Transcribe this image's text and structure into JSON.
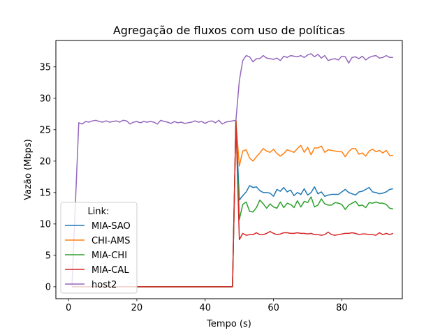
{
  "chart_data": {
    "type": "line",
    "title": "Agregação de fluxos com uso de políticas",
    "xlabel": "Tempo (s)",
    "ylabel": "Vazão (Mbps)",
    "xlim": [
      -3.7,
      97.7
    ],
    "ylim": [
      -1.9,
      39.2
    ],
    "xticks": [
      0,
      20,
      40,
      60,
      80
    ],
    "yticks": [
      0,
      5,
      10,
      15,
      20,
      25,
      30,
      35
    ],
    "grid": false,
    "legend": {
      "title": "Link:",
      "placement": "lower-left"
    },
    "series": [
      {
        "name": "MIA-SAO",
        "color": "#1f77b4",
        "x": [
          1,
          2,
          3,
          4,
          5,
          6,
          7,
          8,
          9,
          10,
          11,
          12,
          13,
          14,
          15,
          16,
          17,
          18,
          19,
          20,
          21,
          22,
          23,
          24,
          25,
          26,
          27,
          28,
          29,
          30,
          31,
          32,
          33,
          34,
          35,
          36,
          37,
          38,
          39,
          40,
          41,
          42,
          43,
          44,
          45,
          46,
          47,
          48,
          49,
          50,
          51,
          52,
          53,
          54,
          55,
          56,
          57,
          58,
          59,
          60,
          61,
          62,
          63,
          64,
          65,
          66,
          67,
          68,
          69,
          70,
          71,
          72,
          73,
          74,
          75,
          76,
          77,
          78,
          79,
          80,
          81,
          82,
          83,
          84,
          85,
          86,
          87,
          88,
          89,
          90,
          91,
          92,
          93,
          94,
          95
        ],
        "y": [
          0,
          0,
          0,
          0,
          0,
          0,
          0,
          0,
          0,
          0,
          0,
          0,
          0,
          0,
          0,
          0,
          0,
          0,
          0,
          0,
          0,
          0,
          0,
          0,
          0,
          0,
          0,
          0,
          0,
          0,
          0,
          0,
          0,
          0,
          0,
          0,
          0,
          0,
          0,
          0,
          0,
          0,
          0,
          0,
          0,
          0,
          0,
          0,
          26.5,
          13.8,
          14.5,
          15.1,
          16.1,
          15.8,
          15.9,
          15.3,
          15.0,
          15.0,
          14.9,
          14.4,
          15.5,
          15.2,
          15.8,
          15.1,
          15.4,
          14.5,
          15.0,
          14.7,
          15.6,
          14.6,
          15.0,
          15.9,
          14.8,
          15.1,
          14.4,
          14.6,
          14.7,
          14.7,
          14.7,
          15.1,
          15.5,
          15.0,
          14.8,
          14.6,
          15.1,
          15.2,
          15.5,
          15.8,
          15.1,
          15.0,
          14.8,
          14.9,
          15.1,
          15.5,
          15.6
        ]
      },
      {
        "name": "CHI-AMS",
        "color": "#ff7f0e",
        "x": [
          1,
          2,
          3,
          4,
          5,
          6,
          7,
          8,
          9,
          10,
          11,
          12,
          13,
          14,
          15,
          16,
          17,
          18,
          19,
          20,
          21,
          22,
          23,
          24,
          25,
          26,
          27,
          28,
          29,
          30,
          31,
          32,
          33,
          34,
          35,
          36,
          37,
          38,
          39,
          40,
          41,
          42,
          43,
          44,
          45,
          46,
          47,
          48,
          49,
          50,
          51,
          52,
          53,
          54,
          55,
          56,
          57,
          58,
          59,
          60,
          61,
          62,
          63,
          64,
          65,
          66,
          67,
          68,
          69,
          70,
          71,
          72,
          73,
          74,
          75,
          76,
          77,
          78,
          79,
          80,
          81,
          82,
          83,
          84,
          85,
          86,
          87,
          88,
          89,
          90,
          91,
          92,
          93,
          94,
          95
        ],
        "y": [
          0,
          0,
          0,
          0,
          0,
          0,
          0,
          0,
          0,
          0,
          0,
          0,
          0,
          0,
          0,
          0,
          0,
          0,
          0,
          0,
          0,
          0,
          0,
          0,
          0,
          0,
          0,
          0,
          0,
          0,
          0,
          0,
          0,
          0,
          0,
          0,
          0,
          0,
          0,
          0,
          0,
          0,
          0,
          0,
          0,
          0,
          0,
          0,
          26.5,
          19.2,
          21.6,
          21.8,
          20.5,
          20.0,
          20.7,
          21.3,
          22.0,
          21.6,
          21.4,
          21.9,
          21.2,
          20.8,
          21.2,
          21.8,
          21.6,
          21.4,
          22.0,
          22.5,
          21.4,
          22.2,
          21.0,
          22.1,
          22.1,
          22.4,
          21.4,
          21.8,
          21.7,
          21.6,
          21.5,
          21.5,
          20.7,
          21.5,
          22.0,
          22.0,
          21.1,
          21.3,
          20.8,
          21.6,
          21.9,
          21.5,
          21.7,
          21.3,
          21.7,
          20.9,
          20.9
        ]
      },
      {
        "name": "MIA-CHI",
        "color": "#2ca02c",
        "x": [
          1,
          2,
          3,
          4,
          5,
          6,
          7,
          8,
          9,
          10,
          11,
          12,
          13,
          14,
          15,
          16,
          17,
          18,
          19,
          20,
          21,
          22,
          23,
          24,
          25,
          26,
          27,
          28,
          29,
          30,
          31,
          32,
          33,
          34,
          35,
          36,
          37,
          38,
          39,
          40,
          41,
          42,
          43,
          44,
          45,
          46,
          47,
          48,
          49,
          50,
          51,
          52,
          53,
          54,
          55,
          56,
          57,
          58,
          59,
          60,
          61,
          62,
          63,
          64,
          65,
          66,
          67,
          68,
          69,
          70,
          71,
          72,
          73,
          74,
          75,
          76,
          77,
          78,
          79,
          80,
          81,
          82,
          83,
          84,
          85,
          86,
          87,
          88,
          89,
          90,
          91,
          92,
          93,
          94,
          95
        ],
        "y": [
          0,
          0,
          0,
          0,
          0,
          0,
          0,
          0,
          0,
          0,
          0,
          0,
          0,
          0,
          0,
          0,
          0,
          0,
          0,
          0,
          0,
          0,
          0,
          0,
          0,
          0,
          0,
          0,
          0,
          0,
          0,
          0,
          0,
          0,
          0,
          0,
          0,
          0,
          0,
          0,
          0,
          0,
          0,
          0,
          0,
          0,
          0,
          0,
          26.5,
          10.7,
          13.1,
          13.5,
          12.0,
          11.9,
          12.6,
          13.8,
          13.2,
          12.5,
          13.2,
          12.7,
          12.5,
          13.5,
          12.6,
          13.3,
          13.1,
          12.6,
          13.7,
          12.7,
          13.6,
          13.4,
          14.3,
          12.7,
          13.0,
          14.0,
          13.2,
          13.0,
          13.0,
          13.4,
          13.3,
          13.1,
          12.3,
          13.0,
          13.3,
          13.6,
          12.9,
          13.0,
          12.6,
          13.4,
          13.3,
          13.5,
          13.3,
          13.3,
          13.1,
          12.5,
          12.4
        ]
      },
      {
        "name": "MIA-CAL",
        "color": "#d62728",
        "x": [
          1,
          2,
          3,
          4,
          5,
          6,
          7,
          8,
          9,
          10,
          11,
          12,
          13,
          14,
          15,
          16,
          17,
          18,
          19,
          20,
          21,
          22,
          23,
          24,
          25,
          26,
          27,
          28,
          29,
          30,
          31,
          32,
          33,
          34,
          35,
          36,
          37,
          38,
          39,
          40,
          41,
          42,
          43,
          44,
          45,
          46,
          47,
          48,
          49,
          50,
          51,
          52,
          53,
          54,
          55,
          56,
          57,
          58,
          59,
          60,
          61,
          62,
          63,
          64,
          65,
          66,
          67,
          68,
          69,
          70,
          71,
          72,
          73,
          74,
          75,
          76,
          77,
          78,
          79,
          80,
          81,
          82,
          83,
          84,
          85,
          86,
          87,
          88,
          89,
          90,
          91,
          92,
          93,
          94,
          95
        ],
        "y": [
          0,
          0,
          0,
          0,
          0,
          0,
          0,
          0,
          0,
          0,
          0,
          0,
          0,
          0,
          0,
          0,
          0,
          0,
          0,
          0,
          0,
          0,
          0,
          0,
          0,
          0,
          0,
          0,
          0,
          0,
          0,
          0,
          0,
          0,
          0,
          0,
          0,
          0,
          0,
          0,
          0,
          0,
          0,
          0,
          0,
          0,
          0,
          0,
          26.5,
          7.5,
          8.5,
          8.2,
          8.3,
          8.3,
          8.6,
          8.3,
          8.3,
          8.5,
          8.8,
          8.5,
          8.3,
          8.4,
          8.6,
          8.6,
          8.5,
          8.5,
          8.6,
          8.5,
          8.5,
          8.4,
          8.5,
          8.3,
          8.3,
          8.2,
          8.3,
          8.7,
          8.3,
          8.2,
          8.3,
          8.4,
          8.5,
          8.5,
          8.6,
          8.5,
          8.3,
          8.4,
          8.4,
          8.3,
          8.3,
          8.2,
          8.6,
          8.3,
          8.5,
          8.3,
          8.5
        ]
      },
      {
        "name": "host2",
        "color": "#9467bd",
        "x": [
          1,
          2,
          3,
          4,
          5,
          6,
          7,
          8,
          9,
          10,
          11,
          12,
          13,
          14,
          15,
          16,
          17,
          18,
          19,
          20,
          21,
          22,
          23,
          24,
          25,
          26,
          27,
          28,
          29,
          30,
          31,
          32,
          33,
          34,
          35,
          36,
          37,
          38,
          39,
          40,
          41,
          42,
          43,
          44,
          45,
          46,
          47,
          48,
          49,
          50,
          51,
          52,
          53,
          54,
          55,
          56,
          57,
          58,
          59,
          60,
          61,
          62,
          63,
          64,
          65,
          66,
          67,
          68,
          69,
          70,
          71,
          72,
          73,
          74,
          75,
          76,
          77,
          78,
          79,
          80,
          81,
          82,
          83,
          84,
          85,
          86,
          87,
          88,
          89,
          90,
          91,
          92,
          93,
          94,
          95
        ],
        "y": [
          0.1,
          13.0,
          26.1,
          25.9,
          26.3,
          26.2,
          26.4,
          26.5,
          26.3,
          26.2,
          26.4,
          26.2,
          26.3,
          26.4,
          26.2,
          26.5,
          26.4,
          25.9,
          26.2,
          26.3,
          26.1,
          26.3,
          26.2,
          26.3,
          26.2,
          25.9,
          26.5,
          26.3,
          26.2,
          26.0,
          26.3,
          26.1,
          26.2,
          26.0,
          26.1,
          26.2,
          26.4,
          26.2,
          26.3,
          26.0,
          26.3,
          26.4,
          26.1,
          26.5,
          25.9,
          26.2,
          26.3,
          26.4,
          26.5,
          32.8,
          36.0,
          36.8,
          36.6,
          35.8,
          36.3,
          36.3,
          36.8,
          36.4,
          36.3,
          36.2,
          36.4,
          36.0,
          36.7,
          36.5,
          36.8,
          36.7,
          36.6,
          36.8,
          36.5,
          36.9,
          37.1,
          36.6,
          37.0,
          36.4,
          36.8,
          36.0,
          36.2,
          36.3,
          36.1,
          36.7,
          36.6,
          35.6,
          36.5,
          36.6,
          36.3,
          36.7,
          36.1,
          36.5,
          36.7,
          36.8,
          36.4,
          36.5,
          36.8,
          36.5,
          36.5
        ]
      }
    ]
  }
}
